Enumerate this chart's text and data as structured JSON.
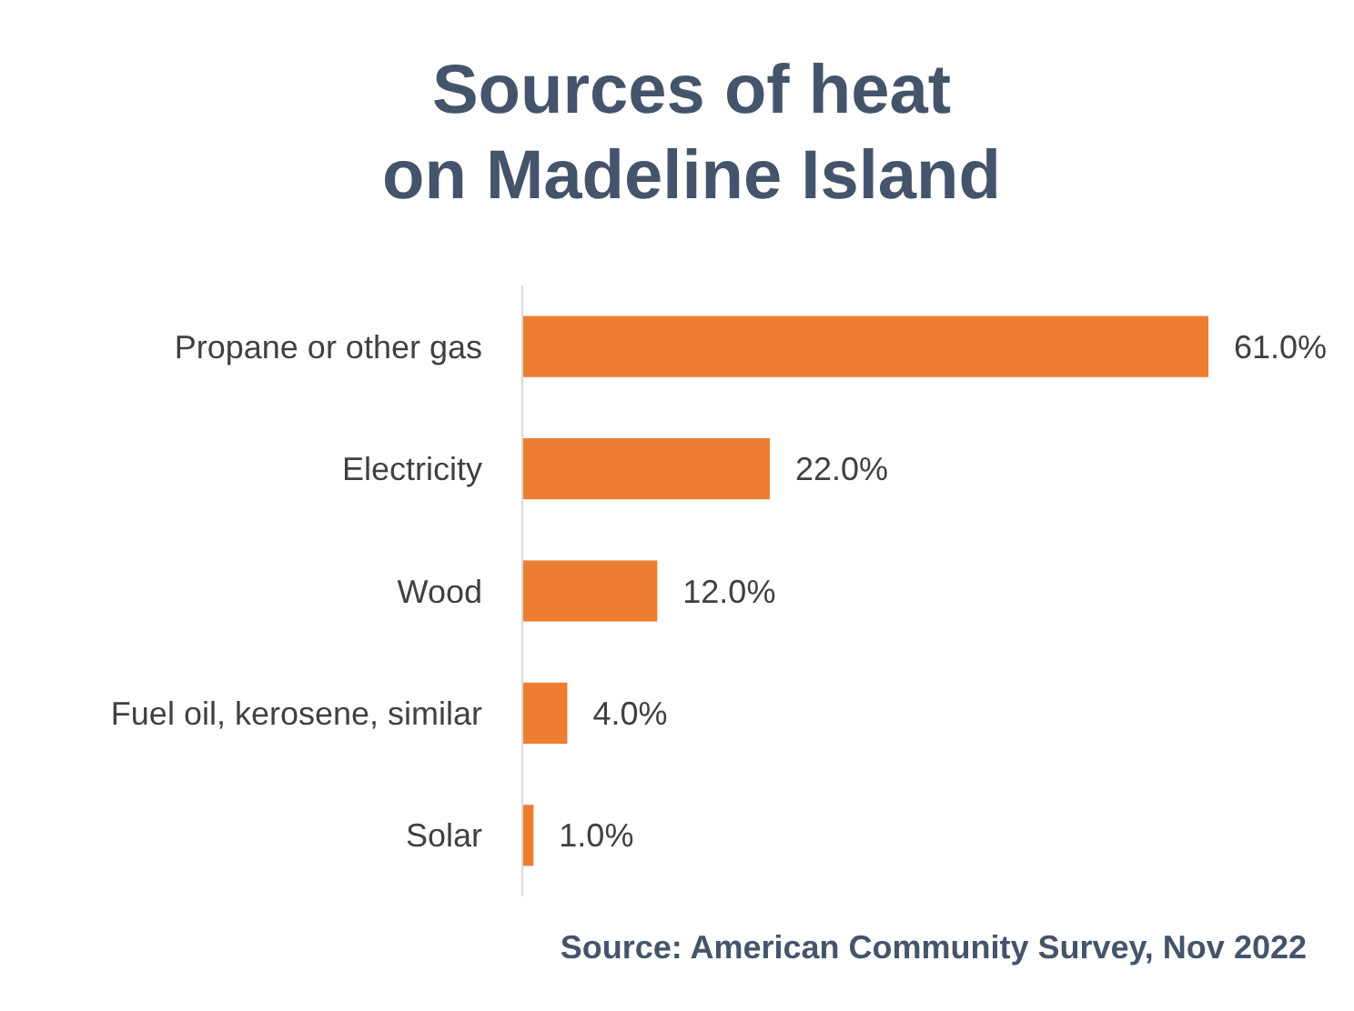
{
  "chart_data": {
    "type": "bar",
    "orientation": "horizontal",
    "title": "Sources of heat\non Madeline Island",
    "categories": [
      "Propane or other gas",
      "Electricity",
      "Wood",
      "Fuel oil, kerosene, similar",
      "Solar"
    ],
    "values": [
      61,
      22,
      12,
      4,
      1
    ],
    "value_labels": [
      "61.0%",
      "22.0%",
      "12.0%",
      "4.0%",
      "1.0%"
    ],
    "color": "#ed7d31",
    "annotations": [
      "Source: American Community Survey, Nov 2022"
    ]
  }
}
